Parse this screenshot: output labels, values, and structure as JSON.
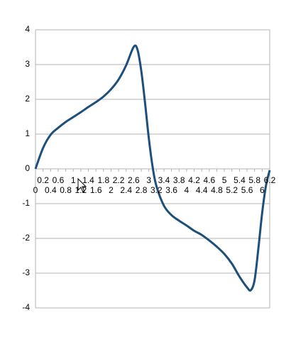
{
  "chart_data": {
    "type": "line",
    "x": [
      0,
      0.2,
      0.4,
      0.6,
      0.8,
      1.0,
      1.2,
      1.4,
      1.6,
      1.8,
      2.0,
      2.2,
      2.4,
      2.6,
      2.7,
      2.8,
      2.9,
      3.0,
      3.1,
      3.2,
      3.4,
      3.6,
      3.8,
      4.0,
      4.2,
      4.4,
      4.6,
      4.8,
      5.0,
      5.2,
      5.4,
      5.6,
      5.7,
      5.8,
      5.9,
      6.0,
      6.1,
      6.2
    ],
    "series": [
      {
        "color": "#1c4f7c",
        "values": [
          0,
          0.6,
          0.98,
          1.18,
          1.35,
          1.49,
          1.63,
          1.78,
          1.92,
          2.08,
          2.29,
          2.57,
          2.98,
          3.51,
          3.43,
          2.82,
          1.9,
          0.88,
          0.06,
          -0.49,
          -1.06,
          -1.33,
          -1.49,
          -1.63,
          -1.78,
          -1.9,
          -2.06,
          -2.24,
          -2.45,
          -2.73,
          -3.1,
          -3.41,
          -3.49,
          -3.2,
          -2.29,
          -1.27,
          -0.49,
          -0.04
        ]
      }
    ],
    "xlim": [
      0,
      6.2
    ],
    "ylim": [
      -4,
      4
    ],
    "xticks": [
      0,
      0.2,
      0.4,
      0.6,
      0.8,
      1,
      1.2,
      1.4,
      1.6,
      1.8,
      2,
      2.2,
      2.4,
      2.6,
      2.8,
      3,
      3.2,
      3.4,
      3.6,
      3.8,
      4,
      4.2,
      4.4,
      4.6,
      4.8,
      5,
      5.2,
      5.4,
      5.6,
      5.8,
      6,
      6.2
    ],
    "yticks": [
      -4,
      -3,
      -2,
      -1,
      0,
      1,
      2,
      3,
      4
    ],
    "grid": true
  }
}
